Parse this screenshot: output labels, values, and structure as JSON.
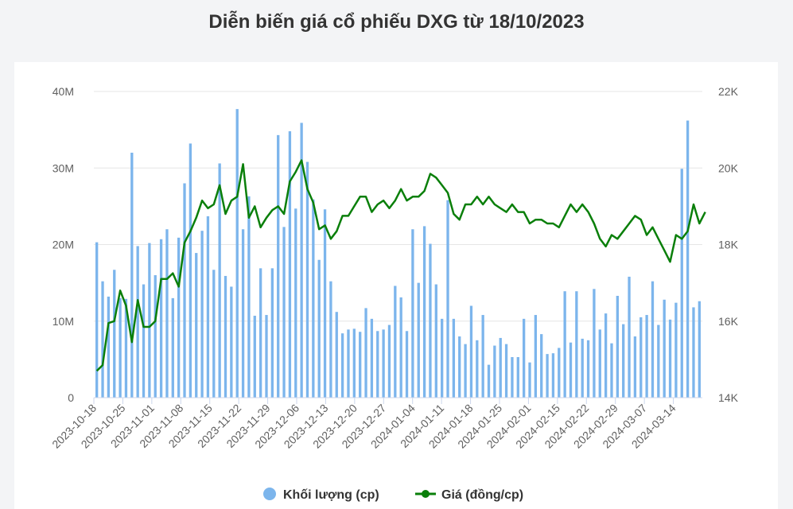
{
  "title": "Diễn biến giá cổ phiếu DXG từ 18/10/2023",
  "colors": {
    "volume": "#7cb5ec",
    "price": "#0a7f0a",
    "grid": "#e6e6e6"
  },
  "chart_data": {
    "type": "bar+line",
    "title": "Diễn biến giá cổ phiếu DXG từ 18/10/2023",
    "x_tick_labels": [
      "2023-10-18",
      "2023-10-25",
      "2023-11-01",
      "2023-11-08",
      "2023-11-15",
      "2023-11-22",
      "2023-11-29",
      "2023-12-06",
      "2023-12-13",
      "2023-12-20",
      "2023-12-27",
      "2024-01-04",
      "2024-01-11",
      "2024-01-18",
      "2024-01-25",
      "2024-02-01",
      "2024-02-15",
      "2024-02-22",
      "2024-02-29",
      "2024-03-07",
      "2024-03-14"
    ],
    "y_left": {
      "labels": [
        "0",
        "10M",
        "20M",
        "30M",
        "40M"
      ],
      "values": [
        0,
        10000000,
        20000000,
        30000000,
        40000000
      ],
      "ylim": [
        0,
        40000000
      ]
    },
    "y_right": {
      "labels": [
        "14K",
        "16K",
        "18K",
        "20K",
        "22K"
      ],
      "values": [
        14000,
        16000,
        18000,
        20000,
        22000
      ],
      "ylim": [
        14000,
        22000
      ]
    },
    "legend_position": "bottom-center",
    "series": [
      {
        "name": "Khối lượng (cp)",
        "type": "bar",
        "values": [
          20.3,
          15.2,
          13.2,
          16.7,
          13,
          12.9,
          32,
          19.8,
          14.8,
          20.2,
          16,
          20.7,
          22,
          13,
          20.9,
          28,
          33.2,
          18.9,
          21.8,
          23.7,
          16.7,
          30.6,
          15.9,
          14.5,
          37.7,
          22,
          26.3,
          10.7,
          16.9,
          10.8,
          16.9,
          34.3,
          22.3,
          34.8,
          24.7,
          35.9,
          30.8,
          25.9,
          18,
          24.6,
          15.2,
          11.2,
          8.4,
          8.9,
          9,
          8.6,
          11.7,
          10.3,
          8.7,
          8.9,
          9.5,
          14.6,
          13.1,
          8.7,
          22,
          15,
          22.4,
          20.1,
          14.8,
          10.3,
          25.8,
          10.3,
          8,
          7,
          12,
          7.5,
          10.8,
          4.3,
          6.8,
          7.8,
          7,
          5.3,
          5.3,
          10.3,
          4.6,
          10.8,
          8.3,
          5.7,
          5.8,
          6.5,
          13.9,
          7.2,
          13.9,
          7.7,
          7.5,
          14.2,
          8.9,
          11,
          7.1,
          13.3,
          9.6,
          15.8,
          8,
          10.5,
          10.8,
          15.2,
          9.5,
          12.8,
          10.2,
          12.4,
          29.9,
          36.2,
          11.8,
          12.6
        ]
      },
      {
        "name": "Giá (đồng/cp)",
        "type": "line",
        "values": [
          14700,
          14850,
          15950,
          16000,
          16800,
          16400,
          15450,
          16550,
          15850,
          15850,
          16000,
          17100,
          17100,
          17250,
          16900,
          18050,
          18350,
          18700,
          19150,
          18950,
          19050,
          19550,
          18800,
          19150,
          19250,
          20100,
          18700,
          19000,
          18450,
          18700,
          18900,
          19000,
          18800,
          19650,
          19900,
          20200,
          19450,
          19100,
          18400,
          18500,
          18150,
          18350,
          18750,
          18750,
          19000,
          19250,
          19250,
          18850,
          19050,
          19150,
          18950,
          19150,
          19450,
          19150,
          19250,
          19250,
          19400,
          19850,
          19750,
          19550,
          19350,
          18800,
          18650,
          19050,
          19050,
          19250,
          19050,
          19250,
          19050,
          18950,
          18850,
          19050,
          18850,
          18850,
          18550,
          18650,
          18650,
          18550,
          18550,
          18450,
          18750,
          19050,
          18850,
          19050,
          18850,
          18550,
          18150,
          17950,
          18250,
          18150,
          18350,
          18550,
          18750,
          18650,
          18250,
          18450,
          18150,
          17850,
          17550,
          18250,
          18150,
          18350,
          19050,
          18550,
          18850
        ]
      }
    ]
  }
}
